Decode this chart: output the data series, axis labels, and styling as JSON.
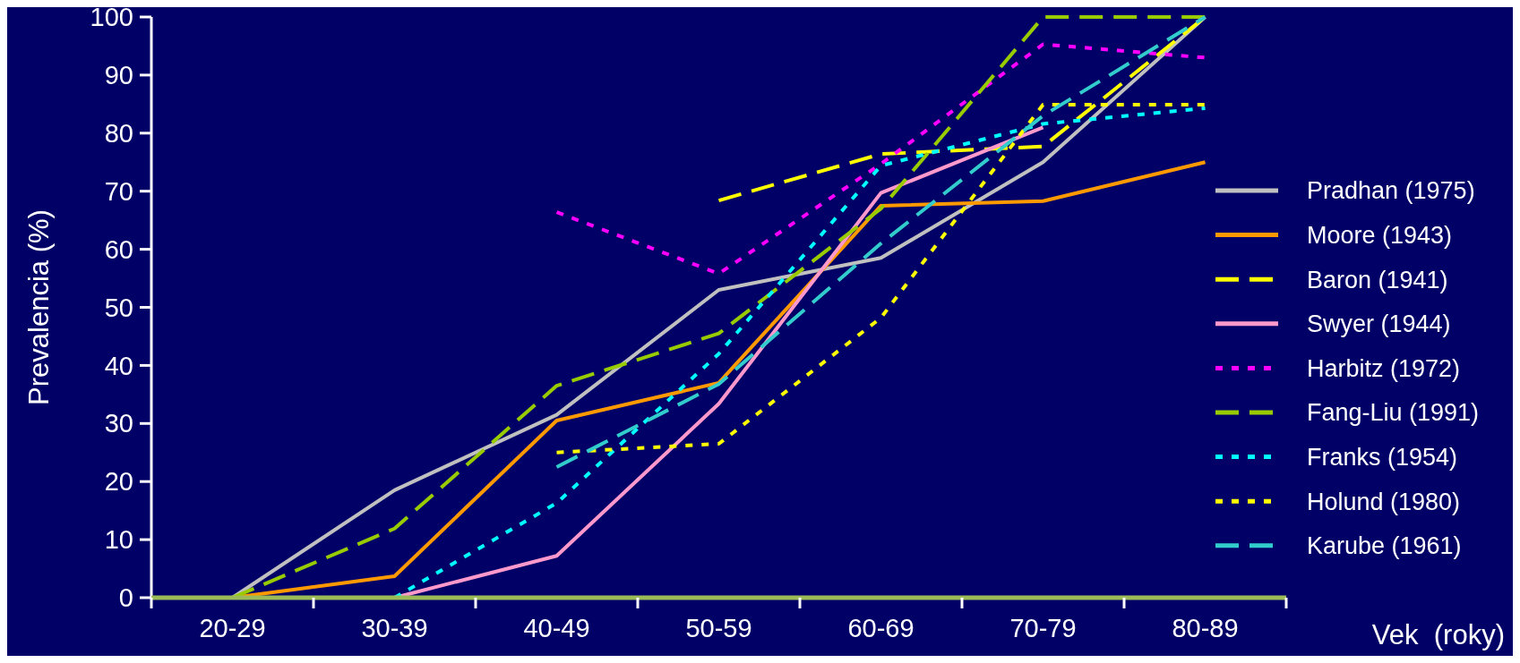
{
  "chart_data": {
    "type": "line",
    "xlabel": "Vek  (roky)",
    "ylabel": "Prevalencia (%)",
    "categories": [
      "20-29",
      "30-39",
      "40-49",
      "50-59",
      "60-69",
      "70-79",
      "80-89"
    ],
    "ylim": [
      0,
      100
    ],
    "yticks": [
      0,
      10,
      20,
      30,
      40,
      50,
      60,
      70,
      80,
      90,
      100
    ],
    "grid": false,
    "legend": "right",
    "marker": "none",
    "series": [
      {
        "name": "Pradhan (1975)",
        "color": "#c0c0c0",
        "line_style": "solid",
        "values": [
          0,
          18.5,
          31.5,
          53,
          58.5,
          75,
          100
        ]
      },
      {
        "name": "Moore (1943)",
        "color": "#ff9900",
        "line_style": "solid",
        "values": [
          0,
          3.7,
          30.5,
          37,
          67.5,
          68.3,
          75
        ]
      },
      {
        "name": "Baron (1941)",
        "color": "#ffff00",
        "line_style": "dashed",
        "values": [
          null,
          null,
          null,
          68.4,
          76.4,
          77.7,
          100
        ]
      },
      {
        "name": "Swyer (1944)",
        "color": "#ff99cc",
        "line_style": "solid",
        "values": [
          0,
          0,
          7.2,
          33.4,
          69.7,
          81,
          null
        ]
      },
      {
        "name": "Harbitz (1972)",
        "color": "#ff00ff",
        "line_style": "dotted",
        "values": [
          null,
          null,
          66.4,
          55.8,
          74.7,
          95.3,
          93
        ]
      },
      {
        "name": "Fang-Liu (1991)",
        "color": "#99cc00",
        "line_style": "dashed",
        "values": [
          0,
          11.9,
          36.5,
          45.5,
          67,
          100,
          100
        ]
      },
      {
        "name": "Franks (1954)",
        "color": "#00ffff",
        "line_style": "dotted",
        "values": [
          null,
          0,
          16.3,
          42,
          74.4,
          81.6,
          84.3
        ]
      },
      {
        "name": "Holund (1980)",
        "color": "#ffff00",
        "line_style": "dotted",
        "values": [
          null,
          null,
          25,
          26.5,
          48.2,
          84.9,
          84.9
        ]
      },
      {
        "name": "Karube (1961)",
        "color": "#33cccc",
        "line_style": "dashed",
        "values": [
          null,
          null,
          22.5,
          36.8,
          61,
          83,
          100
        ]
      }
    ]
  }
}
